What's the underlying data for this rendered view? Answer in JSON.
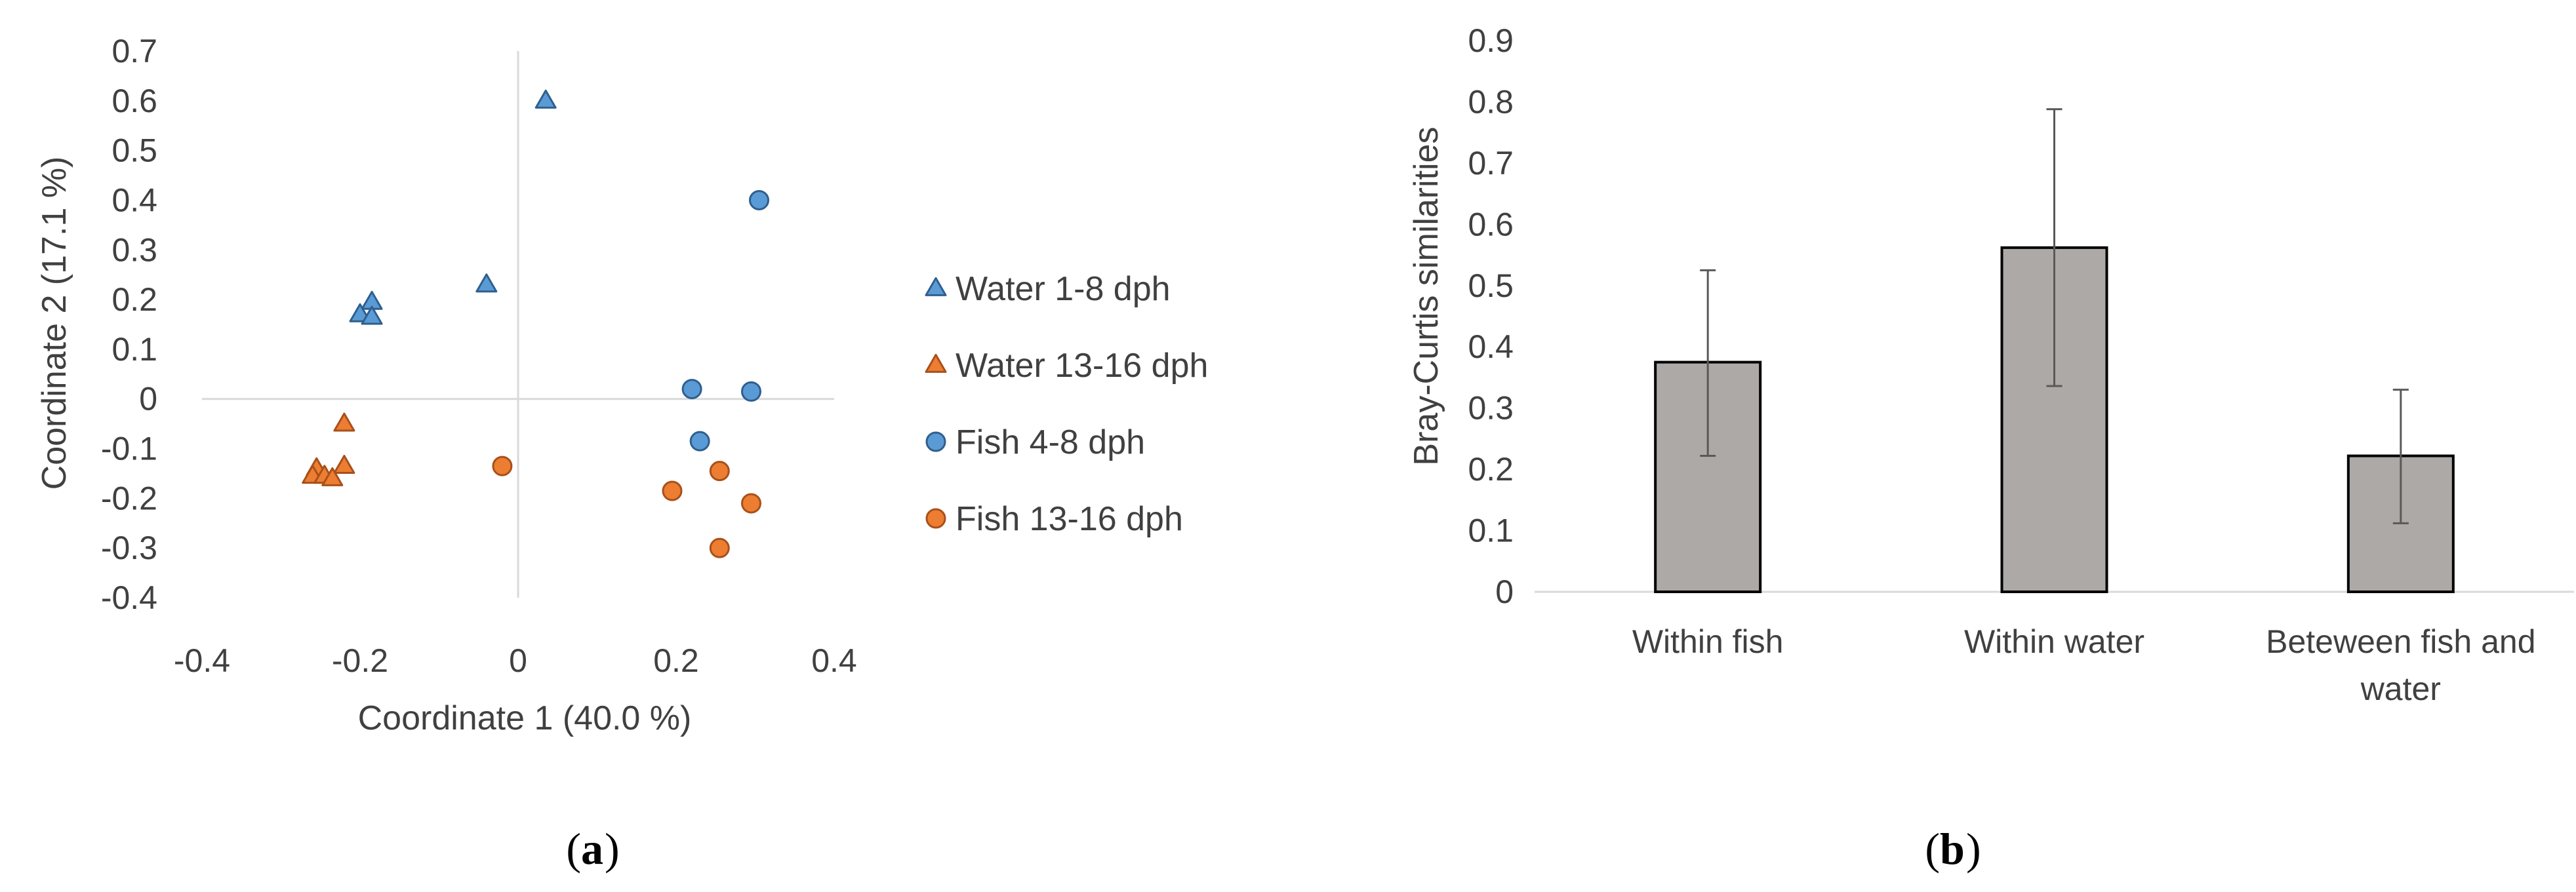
{
  "panels": {
    "a": {
      "label": "a"
    },
    "b": {
      "label": "b"
    }
  },
  "colors": {
    "blue_fill": "#5B9BD5",
    "blue_stroke": "#2E5F8E",
    "orange_fill": "#ED7D31",
    "orange_stroke": "#A8501B",
    "bar_fill": "#ADA9A7",
    "bar_stroke": "#000000",
    "axis": "#D9D9D9",
    "error_bar": "#595959",
    "text": "#404040"
  },
  "chart_data": [
    {
      "type": "scatter",
      "title": "",
      "xlabel": "Coordinate 1 (40.0 %)",
      "ylabel": "Coordinate 2 (17.1 %)",
      "xlim": [
        -0.4,
        0.4
      ],
      "ylim": [
        -0.4,
        0.7
      ],
      "xticks": [
        -0.4,
        -0.2,
        0,
        0.2,
        0.4
      ],
      "xtick_labels": [
        "-0.4",
        "-0.2",
        "0",
        "0.2",
        "0.4"
      ],
      "yticks": [
        0.7,
        0.6,
        0.5,
        0.4,
        0.3,
        0.2,
        0.1,
        0,
        -0.1,
        -0.2,
        -0.3,
        -0.4
      ],
      "ytick_labels": [
        "0.7",
        "0.6",
        "0.5",
        "0.4",
        "0.3",
        "0.2",
        "0.1",
        "0",
        "-0.1",
        "-0.2",
        "-0.3",
        "-0.4"
      ],
      "legend_position": "right",
      "series": [
        {
          "name": "Water 1-8 dph",
          "marker": "triangle",
          "color": "blue",
          "points": [
            [
              0.035,
              0.6
            ],
            [
              -0.04,
              0.23
            ],
            [
              -0.185,
              0.195
            ],
            [
              -0.2,
              0.17
            ],
            [
              -0.185,
              0.165
            ]
          ]
        },
        {
          "name": "Water 13-16 dph",
          "marker": "triangle",
          "color": "orange",
          "points": [
            [
              -0.22,
              -0.05
            ],
            [
              -0.22,
              -0.135
            ],
            [
              -0.255,
              -0.14
            ],
            [
              -0.26,
              -0.155
            ],
            [
              -0.245,
              -0.155
            ],
            [
              -0.235,
              -0.16
            ]
          ]
        },
        {
          "name": "Fish 4-8 dph",
          "marker": "circle",
          "color": "blue",
          "points": [
            [
              0.305,
              0.4
            ],
            [
              0.22,
              0.02
            ],
            [
              0.295,
              0.015
            ],
            [
              0.23,
              -0.085
            ]
          ]
        },
        {
          "name": "Fish 13-16 dph",
          "marker": "circle",
          "color": "orange",
          "points": [
            [
              -0.02,
              -0.135
            ],
            [
              0.195,
              -0.185
            ],
            [
              0.255,
              -0.145
            ],
            [
              0.295,
              -0.21
            ],
            [
              0.255,
              -0.3
            ]
          ]
        }
      ]
    },
    {
      "type": "bar",
      "title": "",
      "xlabel": "",
      "ylabel": "Bray-Curtis similarities",
      "ylim": [
        0,
        0.9
      ],
      "yticks": [
        0.9,
        0.8,
        0.7,
        0.6,
        0.5,
        0.4,
        0.3,
        0.2,
        0.1,
        0
      ],
      "ytick_labels": [
        "0.9",
        "0.8",
        "0.7",
        "0.6",
        "0.5",
        "0.4",
        "0.3",
        "0.2",
        "0.1",
        "0"
      ],
      "categories": [
        [
          "Within fish"
        ],
        [
          "Within water"
        ],
        [
          "Beteween fish and",
          "water"
        ]
      ],
      "values": [
        0.375,
        0.562,
        0.222
      ],
      "error_high": [
        0.525,
        0.788,
        0.33
      ],
      "error_low": [
        0.222,
        0.336,
        0.112
      ]
    }
  ]
}
